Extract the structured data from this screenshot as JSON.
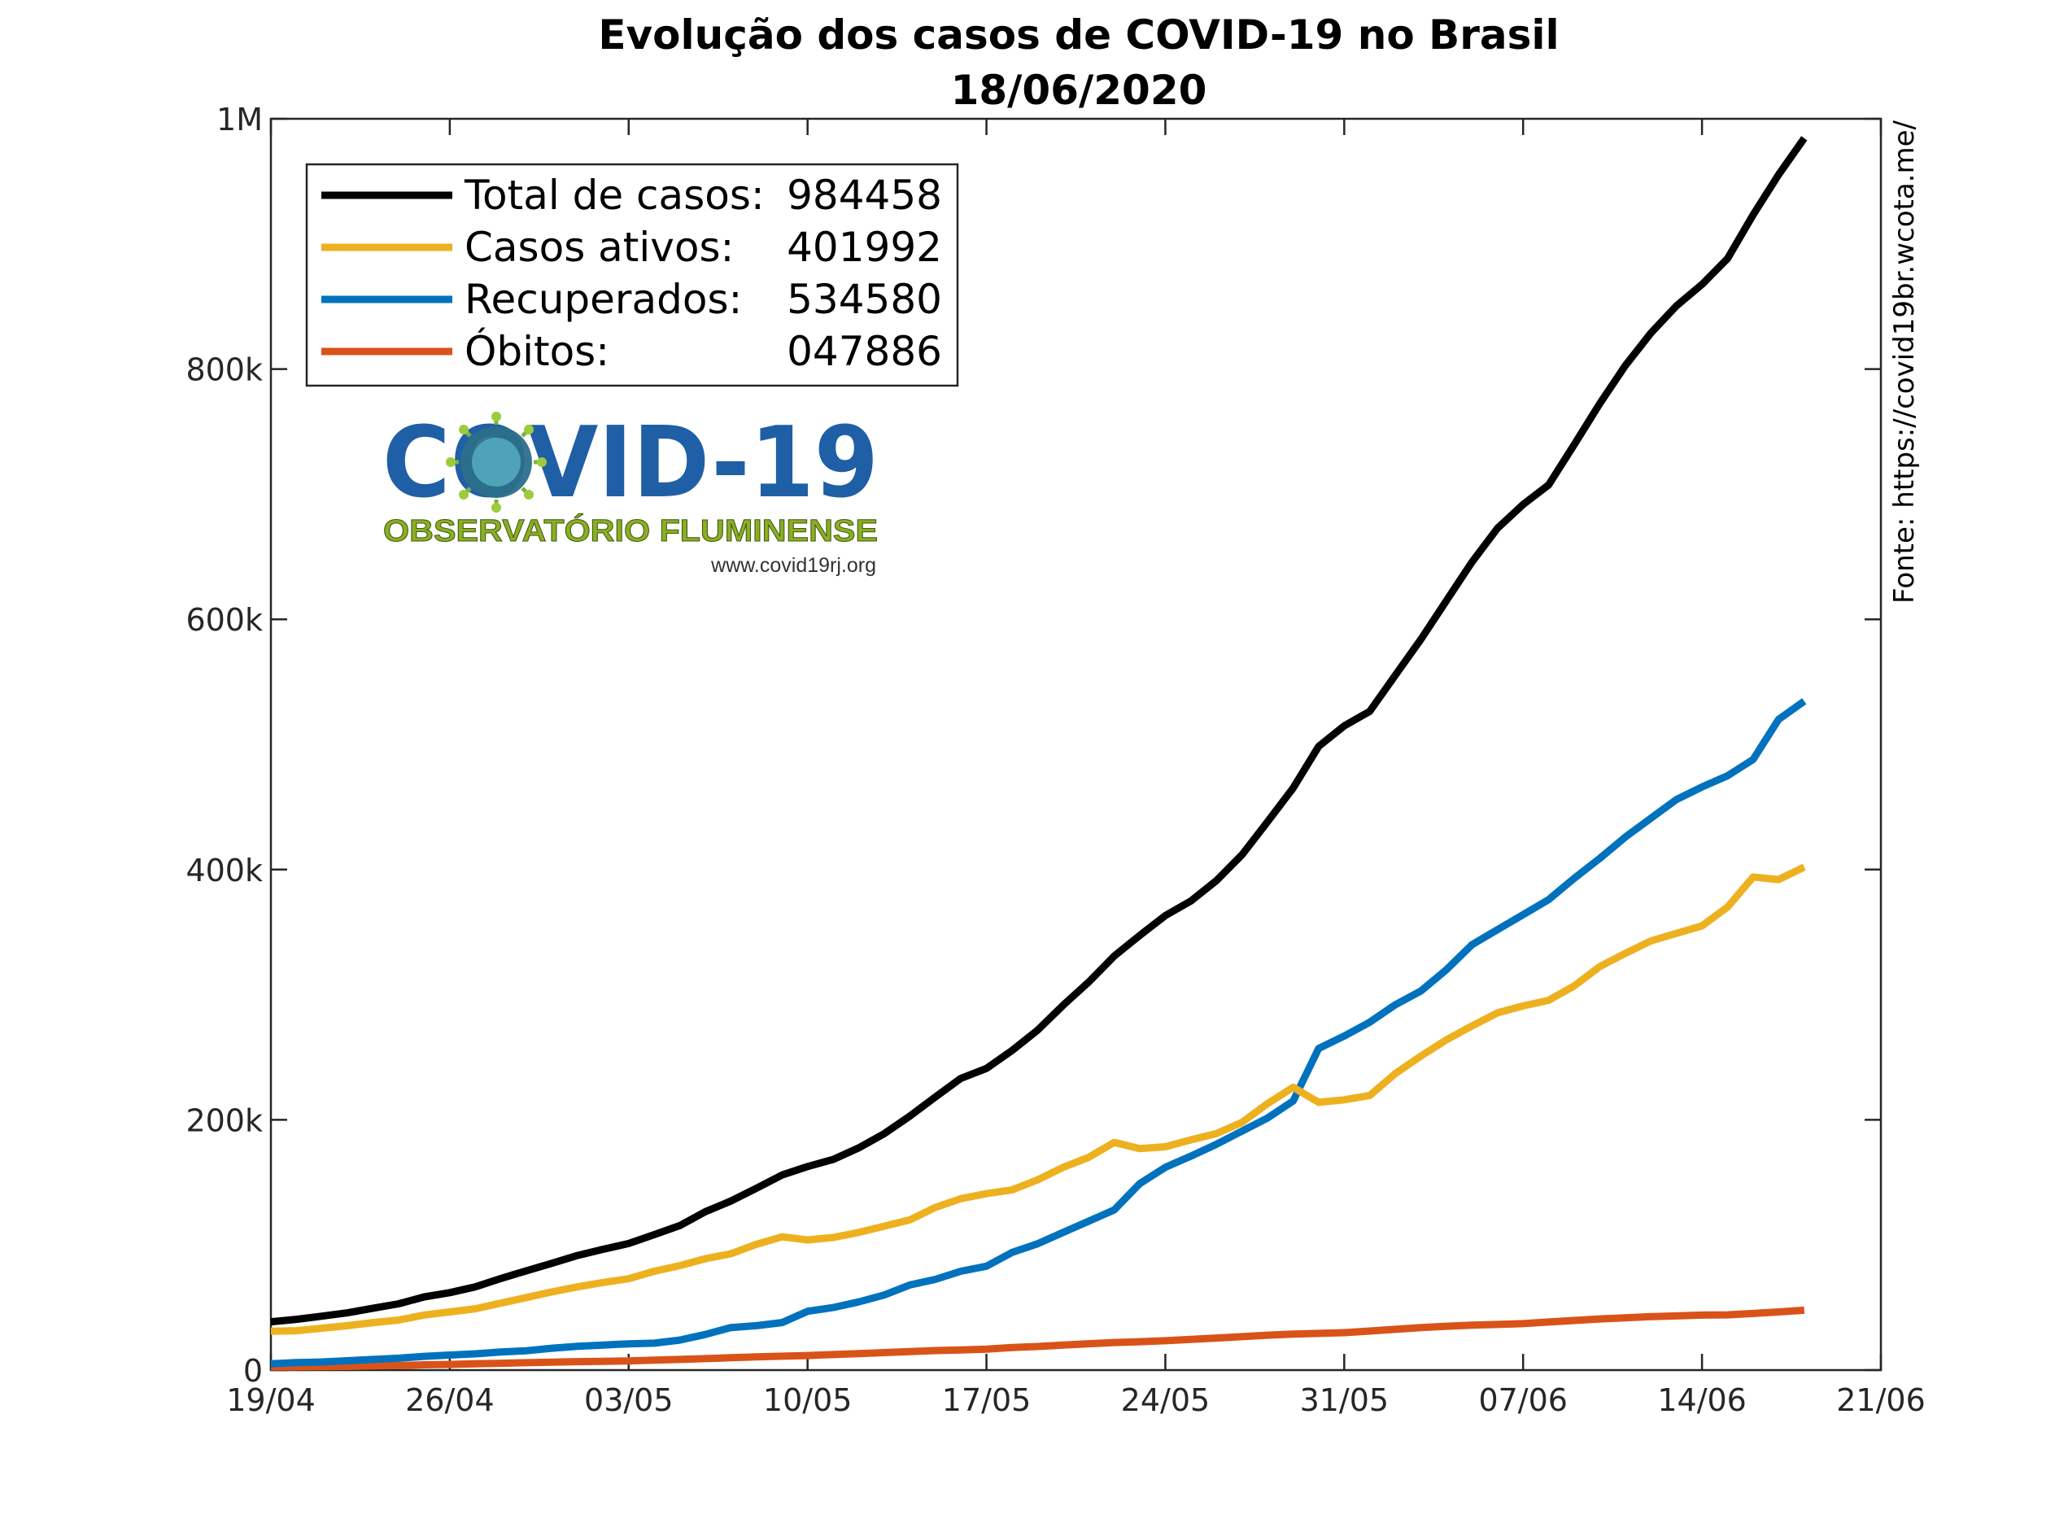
{
  "chart_data": {
    "type": "line",
    "title": "Evolução dos casos de COVID-19 no Brasil",
    "subtitle": "18/06/2020",
    "source": "Fonte: https://covid19br.wcota.me/",
    "xlabel": "",
    "ylabel": "",
    "x_start": "19/04",
    "x_tick_labels": [
      "19/04",
      "26/04",
      "03/05",
      "10/05",
      "17/05",
      "24/05",
      "31/05",
      "07/06",
      "14/06",
      "21/06"
    ],
    "x_tick_days": [
      0,
      7,
      14,
      21,
      28,
      35,
      42,
      49,
      56,
      63
    ],
    "xlim": [
      0,
      63
    ],
    "ylim": [
      0,
      1000000
    ],
    "y_ticks": [
      0,
      200000,
      400000,
      600000,
      800000,
      1000000
    ],
    "y_tick_labels": [
      "0",
      "200k",
      "400k",
      "600k",
      "800k",
      "1M"
    ],
    "grid": false,
    "legend_position": "top-left",
    "series": [
      {
        "name": "Total de casos:",
        "legend_value": "984458",
        "color": "#000000",
        "values": [
          38654,
          40581,
          43079,
          45757,
          49492,
          52995,
          58509,
          61888,
          66501,
          73235,
          79361,
          85380,
          91589,
          96559,
          101147,
          108266,
          115455,
          126611,
          135106,
          145328,
          155939,
          162699,
          168331,
          177589,
          188974,
          202918,
          218223,
          233142,
          241080,
          255368,
          271628,
          291579,
          310087,
          330890,
          347398,
          363211,
          374898,
          391222,
          411821,
          438238,
          465166,
          498440,
          514849,
          526447,
          555383,
          584016,
          614941,
          645771,
          672846,
          691758,
          707412,
          739503,
          772416,
          802828,
          828810,
          850514,
          867624,
          888271,
          923189,
          955377,
          984458
        ]
      },
      {
        "name": "Casos ativos:",
        "legend_value": "401992",
        "color": "#EDB120",
        "values": [
          31000,
          31500,
          33500,
          35500,
          38000,
          40000,
          44000,
          46500,
          49000,
          53500,
          58000,
          62500,
          66500,
          70000,
          73000,
          79000,
          83500,
          89000,
          93000,
          100500,
          106500,
          104000,
          106000,
          110000,
          115000,
          120000,
          130000,
          137000,
          141000,
          144000,
          152000,
          162000,
          170000,
          182000,
          177000,
          178500,
          184000,
          189000,
          198000,
          213000,
          226000,
          214000,
          216000,
          219500,
          237000,
          251000,
          264000,
          275000,
          285500,
          291000,
          295500,
          307000,
          322500,
          333000,
          343000,
          349000,
          355000,
          370000,
          394000,
          392000,
          401992
        ]
      },
      {
        "name": "Recuperados:",
        "legend_value": "534580",
        "color": "#0072BD",
        "values": [
          5000,
          6000,
          6500,
          7500,
          8500,
          9500,
          11000,
          12000,
          13000,
          14500,
          15500,
          17500,
          19000,
          20000,
          21000,
          21500,
          24000,
          28500,
          34000,
          35500,
          38000,
          47000,
          50000,
          54500,
          60000,
          68000,
          72500,
          79000,
          83000,
          94000,
          101000,
          110000,
          119000,
          128000,
          149000,
          162000,
          171000,
          180500,
          191000,
          201500,
          215000,
          257000,
          267000,
          278000,
          292000,
          303000,
          320000,
          340000,
          352000,
          364000,
          376000,
          393000,
          409000,
          426000,
          441000,
          456000,
          466000,
          475000,
          488000,
          520000,
          534580
        ]
      },
      {
        "name": "Óbitos:",
        "legend_value": "047886",
        "color": "#D95319",
        "values": [
          2462,
          2588,
          2741,
          2906,
          3313,
          3670,
          4205,
          4543,
          5017,
          5466,
          5901,
          6329,
          6761,
          7025,
          7321,
          7921,
          8536,
          9146,
          9897,
          10627,
          11123,
          11625,
          12404,
          13149,
          13993,
          14817,
          15633,
          16118,
          16792,
          17983,
          18859,
          20047,
          21048,
          22013,
          22666,
          23473,
          24512,
          25598,
          26754,
          27878,
          28834,
          29314,
          29937,
          31199,
          32548,
          34021,
          35026,
          35930,
          36455,
          37134,
          38406,
          39680,
          40919,
          41828,
          42720,
          43332,
          43959,
          44118,
          45241,
          46510,
          47886
        ]
      }
    ]
  },
  "logo": {
    "covid_text": "COVID-19",
    "subtitle": "OBSERVATÓRIO FLUMINENSE",
    "url": "www.covid19rj.org",
    "blue": "#1f5fa6",
    "green": "#8bae23"
  }
}
